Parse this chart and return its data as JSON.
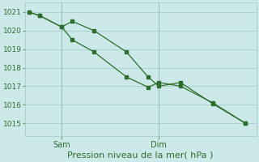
{
  "line1_x": [
    0,
    0.5,
    1.5,
    2.0,
    3.0,
    4.5,
    5.5,
    6.0,
    7.0,
    8.5,
    10.0
  ],
  "line1_y": [
    1021.0,
    1020.8,
    1020.2,
    1020.5,
    1020.0,
    1018.85,
    1017.5,
    1017.0,
    1017.2,
    1016.05,
    1015.0
  ],
  "line2_x": [
    0,
    0.5,
    1.5,
    2.0,
    3.0,
    4.5,
    5.5,
    6.0,
    7.0,
    8.5,
    10.0
  ],
  "line2_y": [
    1021.0,
    1020.8,
    1020.2,
    1019.5,
    1018.85,
    1017.5,
    1016.95,
    1017.2,
    1017.0,
    1016.1,
    1015.0
  ],
  "line_color": "#2d6e2d",
  "bg_color": "#cce8e8",
  "grid_color": "#9fc8c8",
  "xlabel": "Pression niveau de la mer( hPa )",
  "yticks": [
    1015,
    1016,
    1017,
    1018,
    1019,
    1020,
    1021
  ],
  "ylim": [
    1014.3,
    1021.5
  ],
  "xlim": [
    -0.2,
    10.5
  ],
  "sam_x": 1.5,
  "dim_x": 6.0,
  "xlabel_fontsize": 8,
  "ytick_fontsize": 6.5,
  "xtick_fontsize": 7
}
